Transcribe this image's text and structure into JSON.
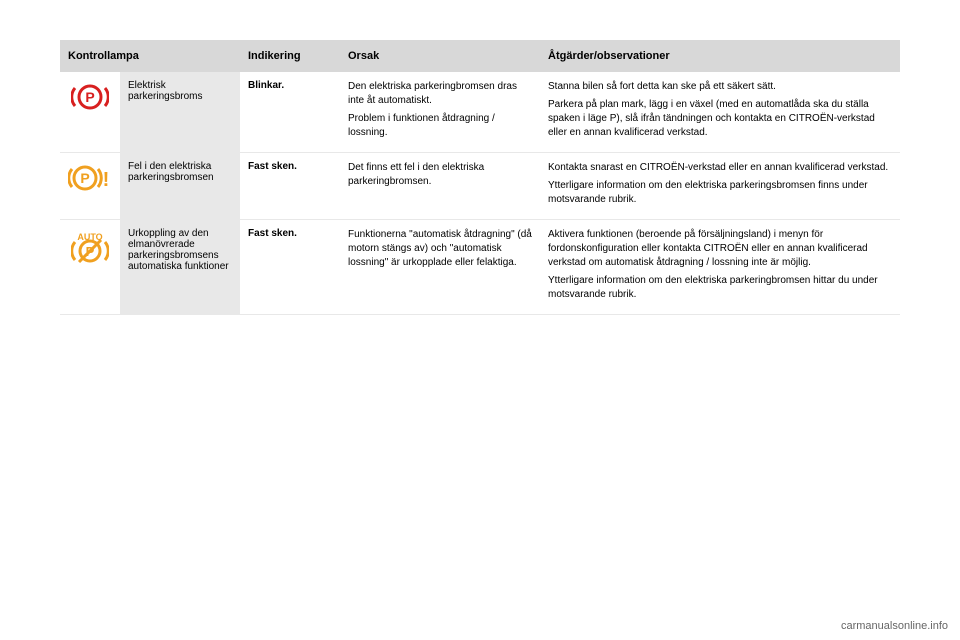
{
  "table": {
    "headers": {
      "col1": "Kontrollampa",
      "col2": "Indikering",
      "col3": "Orsak",
      "col4": "Åtgärder/observationer"
    },
    "rows": [
      {
        "icon": {
          "type": "p-circle",
          "color": "#d82020",
          "name": "parking-brake-icon"
        },
        "label": "Elektrisk parkeringsbroms",
        "indicator": "Blinkar.",
        "cause": [
          "Den elektriska parkeringbromsen dras inte åt automatiskt.",
          "Problem i funktionen åtdragning / lossning."
        ],
        "action": [
          "Stanna bilen så fort detta kan ske på ett säkert sätt.",
          "Parkera på plan mark, lägg i en växel (med en automatlåda ska du ställa spaken i läge P), slå ifrån tändningen och kontakta en CITROËN-verkstad eller en annan kvalificerad verkstad."
        ]
      },
      {
        "icon": {
          "type": "p-circle-warn",
          "color": "#f0a020",
          "name": "parking-brake-fault-icon"
        },
        "label": "Fel i den elektriska parkeringsbromsen",
        "indicator": "Fast sken.",
        "cause": [
          "Det finns ett fel i den elektriska parkeringbromsen."
        ],
        "action": [
          "Kontakta snarast en CITROËN-verkstad eller en annan kvalificerad verkstad.",
          "Ytterligare information om den elektriska parkeringsbromsen finns under motsvarande rubrik."
        ]
      },
      {
        "icon": {
          "type": "auto-p",
          "color": "#f0a020",
          "name": "auto-parking-brake-icon"
        },
        "label": "Urkoppling av den elmanövrerade parkeringsbromsens automatiska funktioner",
        "indicator": "Fast sken.",
        "cause": [
          "Funktionerna \"automatisk åtdragning\" (då motorn stängs av) och \"automatisk lossning\" är urkopplade eller felaktiga."
        ],
        "action": [
          "Aktivera funktionen (beroende på försäljningsland) i menyn för fordonskonfiguration eller kontakta CITROËN eller en annan kvalificerad verkstad om automatisk åtdragning / lossning inte är möjlig.",
          "Ytterligare information om den elektriska parkeringbromsen hittar du under motsvarande rubrik."
        ]
      }
    ]
  },
  "footer": "carmanualsonline.info",
  "colors": {
    "header_bg": "#d8d8d8",
    "label_bg": "#e8e8e8",
    "red": "#d82020",
    "amber": "#f0a020",
    "text": "#000000",
    "background": "#ffffff"
  }
}
